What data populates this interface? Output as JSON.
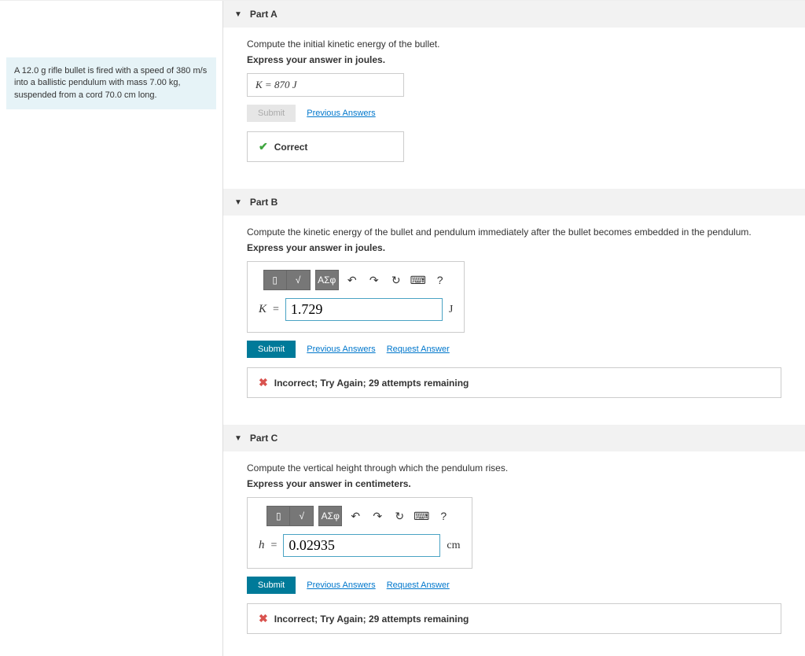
{
  "problem": {
    "text": "A 12.0 g rifle bullet is fired with a speed of 380 m/s into a ballistic pendulum with mass 7.00 kg, suspended from a cord 70.0 cm long."
  },
  "parts": {
    "a": {
      "title": "Part A",
      "question": "Compute the initial kinetic energy of the bullet.",
      "instruction": "Express your answer in joules.",
      "answer_display": "K =  870  J",
      "submit_label": "Submit",
      "prev_link": "Previous Answers",
      "feedback": "Correct"
    },
    "b": {
      "title": "Part B",
      "question": "Compute the kinetic energy of the bullet and pendulum immediately after the bullet becomes embedded in the pendulum.",
      "instruction": "Express your answer in joules.",
      "var": "K",
      "eq": "=",
      "input_value": "1.729",
      "unit": "J",
      "submit_label": "Submit",
      "prev_link": "Previous Answers",
      "request_link": "Request Answer",
      "feedback": "Incorrect; Try Again; 29 attempts remaining",
      "toolbar": {
        "greek": "ΑΣφ"
      }
    },
    "c": {
      "title": "Part C",
      "question": "Compute the vertical height through which the pendulum rises.",
      "instruction": "Express your answer in centimeters.",
      "var": "h",
      "eq": "=",
      "input_value": "0.02935",
      "unit": "cm",
      "submit_label": "Submit",
      "prev_link": "Previous Answers",
      "request_link": "Request Answer",
      "feedback": "Incorrect; Try Again; 29 attempts remaining",
      "toolbar": {
        "greek": "ΑΣφ"
      }
    }
  }
}
